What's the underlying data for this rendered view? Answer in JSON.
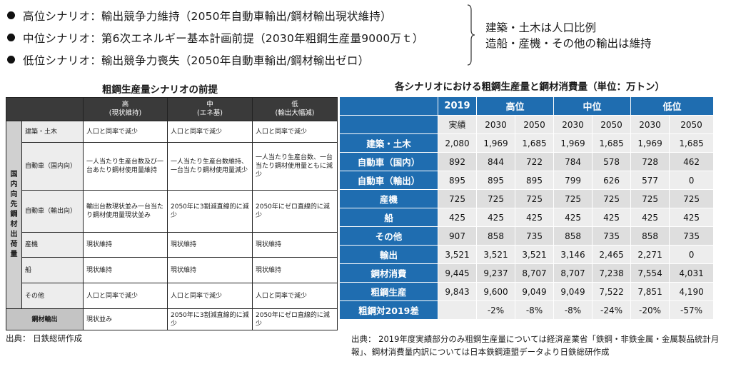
{
  "scenarios": [
    {
      "text": "高位シナリオ：輸出競争力維持（2050年自動車輸出/鋼材輸出現状維持）"
    },
    {
      "text": "中位シナリオ：第6次エネルギー基本計画前提（2030年粗鋼生産量9000万ｔ）"
    },
    {
      "text": "低位シナリオ：輸出競争力喪失（2050年自動車輸出/鋼材輸出ゼロ）"
    }
  ],
  "brace_note": [
    "建築・土木は人口比例",
    "造船・産機・その他の輸出は維持"
  ],
  "left_table": {
    "title": "粗鋼生産量シナリオの前提",
    "headers": [
      {
        "main": "高",
        "sub": "(現状維持)"
      },
      {
        "main": "中",
        "sub": "(エネ基)"
      },
      {
        "main": "低",
        "sub": "(輸出大幅減)"
      }
    ],
    "group_label": "国内向先鋼材出荷量",
    "rows": [
      {
        "category": "建築・土木",
        "cells": [
          "人口と同率で減少",
          "人口と同率で減少",
          "人口と同率で減少"
        ]
      },
      {
        "category": "自動車（国内向）",
        "cells": [
          "一人当たり生産台数及び一台あたり鋼材使用量維持",
          "一人当たり生産台数維持、一台当たり鋼材使用量減少",
          "一人当たり生産台数、一台当たり鋼材使用量ともに減少"
        ]
      },
      {
        "category": "自動車（輸出向）",
        "cells": [
          "輸出台数現状並み一台当たり鋼材使用量現状並み",
          "2050年に3割減直線的に減少",
          "2050年にゼロ直線的に減少"
        ]
      },
      {
        "category": "産機",
        "cells": [
          "現状維持",
          "現状維持",
          "現状維持"
        ]
      },
      {
        "category": "船",
        "cells": [
          "現状維持",
          "現状維持",
          "現状維持"
        ]
      },
      {
        "category": "その他",
        "cells": [
          "人口と同率で減少",
          "人口と同率で減少",
          "人口と同率で減少"
        ]
      }
    ],
    "footer": {
      "category": "鋼材輸出",
      "cells": [
        "現状並み",
        "2050年に3割減直線的に減少",
        "2050年にゼロ直線的に減少"
      ]
    },
    "source": "出典： 日鉄総研作成"
  },
  "right_table": {
    "title": "各シナリオにおける粗鋼生産量と鋼材消費量（単位：万トン）",
    "header": {
      "base": "2019",
      "groups": [
        "高位",
        "中位",
        "低位"
      ]
    },
    "subheader": [
      "実績",
      "2030",
      "2050",
      "2030",
      "2050",
      "2030",
      "2050"
    ],
    "rows": [
      {
        "label": "建築・土木",
        "values": [
          "2,080",
          "1,969",
          "1,685",
          "1,969",
          "1,685",
          "1,969",
          "1,685"
        ]
      },
      {
        "label": "自動車（国内）",
        "values": [
          "892",
          "844",
          "722",
          "784",
          "578",
          "728",
          "462"
        ]
      },
      {
        "label": "自動車（輸出）",
        "values": [
          "895",
          "895",
          "895",
          "799",
          "626",
          "577",
          "0"
        ]
      },
      {
        "label": "産機",
        "values": [
          "725",
          "725",
          "725",
          "725",
          "725",
          "725",
          "725"
        ]
      },
      {
        "label": "船",
        "values": [
          "425",
          "425",
          "425",
          "425",
          "425",
          "425",
          "425"
        ]
      },
      {
        "label": "その他",
        "values": [
          "907",
          "858",
          "735",
          "858",
          "735",
          "858",
          "735"
        ]
      },
      {
        "label": "輸出",
        "values": [
          "3,521",
          "3,521",
          "3,521",
          "3,146",
          "2,465",
          "2,271",
          "0"
        ]
      },
      {
        "label": "鋼材消費",
        "values": [
          "9,445",
          "9,237",
          "8,707",
          "8,707",
          "7,238",
          "7,554",
          "4,031"
        ]
      },
      {
        "label": "粗鋼生産",
        "values": [
          "9,843",
          "9,600",
          "9,049",
          "9,049",
          "7,522",
          "7,851",
          "4,190"
        ]
      }
    ],
    "diff_row": {
      "label": "粗鋼対2019差",
      "values": [
        "-2%",
        "-8%",
        "-8%",
        "-24%",
        "-20%",
        "-57%"
      ]
    },
    "source": "出典： 2019年度実績部分のみ粗鋼生産量については経済産業省「鉄鋼・非鉄金属・金属製品統計月報」、鋼材消費量内訳については日本鉄鋼連盟データより日鉄総研作成"
  }
}
